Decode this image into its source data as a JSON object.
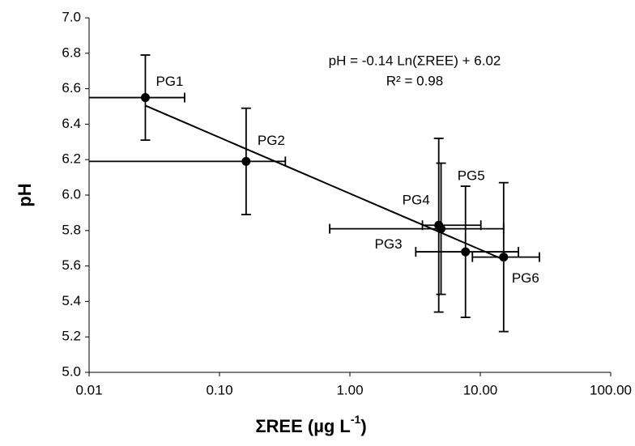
{
  "chart_data": {
    "type": "scatter",
    "x_label": "ΣREE (µg L",
    "x_label_sup": "-1",
    "x_label_end": ")",
    "y_label": "pH",
    "annotations": [
      "pH = -0.14 Ln(ΣREE) + 6.02",
      "R² = 0.98"
    ],
    "x_log": true,
    "color": "#000000",
    "point_labels": [
      "PG1",
      "PG2",
      "PG3",
      "PG4",
      "PG5",
      "PG6"
    ],
    "x": [
      0.027,
      0.16,
      5.0,
      4.8,
      7.7,
      15.1
    ],
    "values": [
      6.55,
      6.19,
      5.81,
      5.83,
      5.68,
      5.65
    ],
    "yerr": [
      0.24,
      0.3,
      0.37,
      0.49,
      0.37,
      0.42
    ],
    "xerr_minus": [
      0.027,
      0.16,
      4.3,
      1.2,
      4.5,
      6.4
    ],
    "xerr_plus": [
      0.027,
      0.16,
      10.1,
      5.3,
      11.9,
      13.3
    ],
    "trendline": true,
    "xlim": [
      0.01,
      100
    ],
    "xticks": [
      0.01,
      {
        "value": 0.1,
        "label": "0.10"
      },
      {
        "value": 1,
        "label": "1.00"
      },
      {
        "value": 10,
        "label": "10.00"
      },
      {
        "value": 100,
        "label": "100.00"
      }
    ],
    "ylim": [
      5,
      7
    ],
    "yticks": [
      {
        "value": 5,
        "label": "5.0"
      },
      {
        "value": 5.2,
        "label": "5.2"
      },
      {
        "value": 5.4,
        "label": "5.4"
      },
      {
        "value": 5.6,
        "label": "5.6"
      },
      {
        "value": 5.8,
        "label": "5.8"
      },
      {
        "value": 6,
        "label": "6.0"
      },
      {
        "value": 6.2,
        "label": "6.2"
      },
      {
        "value": 6.4,
        "label": "6.4"
      },
      {
        "value": 6.6,
        "label": "6.6"
      },
      {
        "value": 6.8,
        "label": "6.8"
      },
      {
        "value": 7,
        "label": "7.0"
      }
    ]
  }
}
